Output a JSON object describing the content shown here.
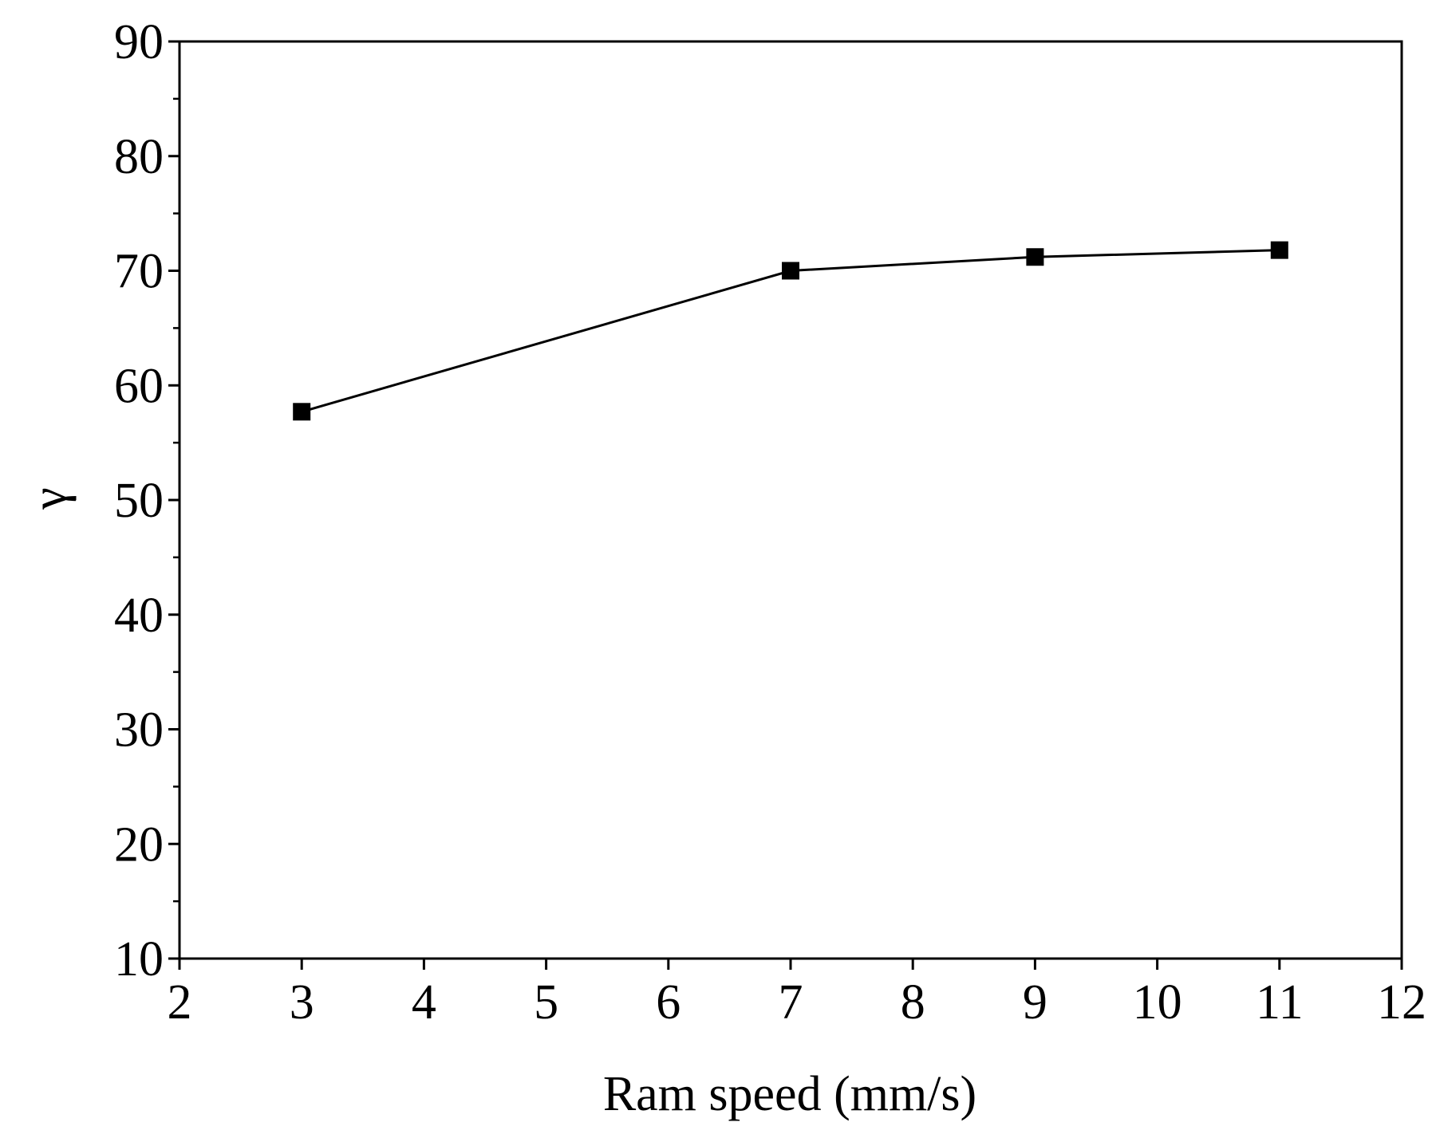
{
  "chart_data": {
    "type": "line",
    "title": "",
    "xlabel": "Ram speed (mm/s)",
    "ylabel": "γ",
    "xlim": [
      2,
      12
    ],
    "ylim": [
      10,
      90
    ],
    "x_ticks": [
      2,
      3,
      4,
      5,
      6,
      7,
      8,
      9,
      10,
      11,
      12
    ],
    "x_tick_labels": [
      "2",
      "3",
      "4",
      "5",
      "6",
      "7",
      "8",
      "9",
      "10",
      "11",
      "12"
    ],
    "y_ticks": [
      10,
      20,
      30,
      40,
      50,
      60,
      70,
      80,
      90
    ],
    "y_tick_labels": [
      "10",
      "20",
      "30",
      "40",
      "50",
      "60",
      "70",
      "80",
      "90"
    ],
    "y_minor_step": 5,
    "grid": false,
    "legend": "none",
    "series": [
      {
        "name": "γ",
        "marker": "square",
        "color": "#000000",
        "x": [
          3,
          7,
          9,
          11
        ],
        "y": [
          57.7,
          70.0,
          71.2,
          71.8
        ]
      }
    ]
  }
}
